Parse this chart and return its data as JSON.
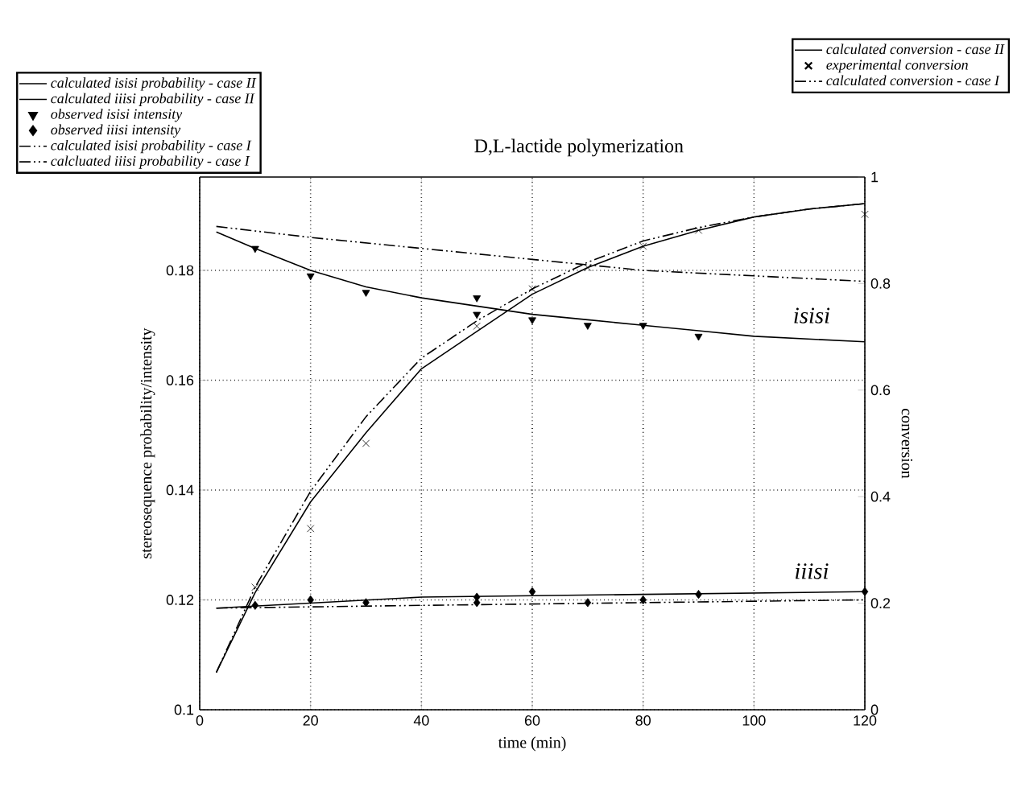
{
  "chart_data": {
    "type": "line",
    "title": "D,L-lactide polymerization",
    "xlabel": "time (min)",
    "ylabel": "stereosequence probability/intensity",
    "y2label": "conversion",
    "xlim": [
      0,
      120
    ],
    "xticks": [
      0,
      20,
      40,
      60,
      80,
      100,
      120
    ],
    "ylim": [
      0.1,
      0.197
    ],
    "yticks": [
      0.1,
      0.12,
      0.14,
      0.16,
      0.18
    ],
    "y2lim": [
      0,
      1
    ],
    "y2ticks": [
      0,
      0.2,
      0.4,
      0.6,
      0.8,
      1
    ],
    "grid": true,
    "legend": "top",
    "annotations": [
      "isisi",
      "iiisi"
    ],
    "series": [
      {
        "name": "calculated isisi probability - case II",
        "line_style": "solid",
        "color": "#000000",
        "x": [
          3,
          10,
          20,
          30,
          40,
          50,
          60,
          70,
          80,
          90,
          100,
          120
        ],
        "values": [
          0.187,
          0.184,
          0.18,
          0.177,
          0.175,
          0.1735,
          0.172,
          0.171,
          0.17,
          0.169,
          0.168,
          0.167
        ]
      },
      {
        "name": "calculated iiisi probability - case II",
        "line_style": "solid",
        "color": "#000000",
        "x": [
          3,
          40,
          80,
          120
        ],
        "values": [
          0.1185,
          0.1205,
          0.121,
          0.1215
        ]
      },
      {
        "name": "observed isisi intensity",
        "type": "scatter",
        "marker": "triangle",
        "color": "#000000",
        "x": [
          10,
          20,
          30,
          50,
          50,
          60,
          70,
          80,
          90
        ],
        "values": [
          0.184,
          0.179,
          0.176,
          0.175,
          0.172,
          0.171,
          0.17,
          0.17,
          0.168
        ]
      },
      {
        "name": "observed iiisi intensity",
        "type": "scatter",
        "marker": "diamond",
        "color": "#000000",
        "x": [
          10,
          20,
          30,
          50,
          50,
          60,
          70,
          80,
          90,
          120
        ],
        "values": [
          0.119,
          0.12,
          0.1195,
          0.1205,
          0.1195,
          0.1215,
          0.1195,
          0.12,
          0.121,
          0.1215
        ]
      },
      {
        "name": "calculated isisi probability - case I",
        "line_style": "dashed",
        "color": "#000000",
        "x": [
          3,
          20,
          40,
          60,
          80,
          100,
          120
        ],
        "values": [
          0.188,
          0.186,
          0.184,
          0.182,
          0.18,
          0.179,
          0.178
        ]
      },
      {
        "name": "calcluated iiisi probability - case I",
        "line_style": "dashed",
        "color": "#000000",
        "x": [
          3,
          40,
          80,
          120
        ],
        "values": [
          0.1185,
          0.119,
          0.1195,
          0.12
        ]
      },
      {
        "name": "calculated conversion - case II",
        "axis": "y2",
        "line_style": "solid",
        "color": "#000000",
        "x": [
          3,
          10,
          20,
          30,
          40,
          50,
          60,
          70,
          80,
          90,
          100,
          110,
          120
        ],
        "values": [
          0.07,
          0.22,
          0.39,
          0.52,
          0.64,
          0.71,
          0.78,
          0.83,
          0.87,
          0.9,
          0.925,
          0.94,
          0.95
        ]
      },
      {
        "name": "experimental conversion",
        "type": "scatter",
        "axis": "y2",
        "marker": "cross",
        "color": "#000000",
        "x": [
          10,
          20,
          30,
          50,
          60,
          70,
          80,
          90,
          120
        ],
        "values": [
          0.23,
          0.34,
          0.5,
          0.72,
          0.79,
          0.83,
          0.87,
          0.9,
          0.93
        ]
      },
      {
        "name": "calculated conversion - case I",
        "axis": "y2",
        "line_style": "dashed",
        "color": "#000000",
        "x": [
          3,
          10,
          20,
          30,
          40,
          50,
          60,
          70,
          80,
          90,
          100,
          110,
          120
        ],
        "values": [
          0.07,
          0.23,
          0.41,
          0.55,
          0.66,
          0.73,
          0.79,
          0.84,
          0.88,
          0.905,
          0.925,
          0.94,
          0.95
        ]
      }
    ]
  }
}
